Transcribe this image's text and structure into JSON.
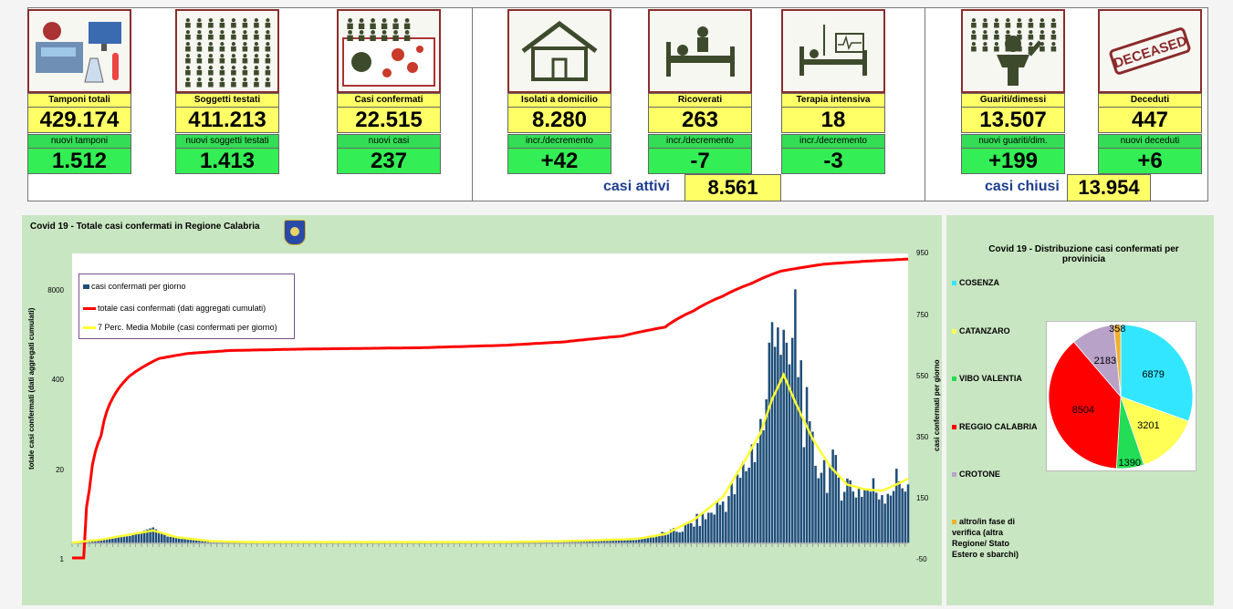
{
  "cards": [
    {
      "id": "tamponi",
      "label": "Tamponi totali",
      "value": "429.174",
      "delta_label": "nuovi tamponi",
      "delta": "1.512",
      "icon": "lab-equipment-icon"
    },
    {
      "id": "soggetti",
      "label": "Soggetti testati",
      "value": "411.213",
      "delta_label": "nuovi soggetti testati",
      "delta": "1.413",
      "icon": "people-grid-icon"
    },
    {
      "id": "confermati",
      "label": "Casi confermati",
      "value": "22.515",
      "delta_label": "nuovi casi",
      "delta": "237",
      "icon": "virus-contagion-icon"
    },
    {
      "id": "isolati",
      "label": "Isolati a domicilio",
      "value": "8.280",
      "delta_label": "incr./decremento",
      "delta": "+42",
      "icon": "house-icon"
    },
    {
      "id": "ricoverati",
      "label": "Ricoverati",
      "value": "263",
      "delta_label": "incr./decremento",
      "delta": "-7",
      "icon": "hospital-bed-icon"
    },
    {
      "id": "terapia",
      "label": "Terapia intensiva",
      "value": "18",
      "delta_label": "incr./decremento",
      "delta": "-3",
      "icon": "icu-monitor-icon"
    },
    {
      "id": "guariti",
      "label": "Guariti/dimessi",
      "value": "13.507",
      "delta_label": "nuovi guariti/dim.",
      "delta": "+199",
      "icon": "recovered-person-icon"
    },
    {
      "id": "deceduti",
      "label": "Deceduti",
      "value": "447",
      "delta_label": "nuovi deceduti",
      "delta": "+6",
      "icon": "deceased-stamp-icon"
    }
  ],
  "summary": {
    "attivi_label": "casi attivi",
    "attivi_value": "8.561",
    "chiusi_label": "casi chiusi",
    "chiusi_value": "13.954"
  },
  "stamp_text": "DECEASED",
  "colors": {
    "bar": "#1f4e79",
    "cumulative_line": "#ff0000",
    "moving_avg": "#ffff33",
    "panel_bg": "#c9e6c2",
    "card_yellow": "#ffff66",
    "card_green": "#33ee55"
  },
  "chart_data": [
    {
      "type": "bar",
      "title": "Covid 19 - Totale casi confermati in Regione Calabria",
      "y_axis_left": {
        "title": "totale casi confermati (dati aggregati cumulati)",
        "scale": "log",
        "ticks": [
          "1",
          "20",
          "400",
          "8000"
        ]
      },
      "y_axis_right": {
        "title": "casi confermati per giorno",
        "range": [
          -50,
          950
        ],
        "ticks": [
          "-50",
          "150",
          "350",
          "550",
          "750",
          "950"
        ]
      },
      "legend": [
        "casi confermati per giorno",
        "totale casi confermati (dati aggregati cumulati)",
        "7 Perc. Media Mobile (casi confermati per giorno)"
      ],
      "legend_position": "top-left",
      "x_days": 290,
      "series": [
        {
          "name": "casi confermati per giorno",
          "kind": "bar",
          "values_keypoints": [
            [
              0,
              0
            ],
            [
              8,
              8
            ],
            [
              20,
              22
            ],
            [
              25,
              40
            ],
            [
              28,
              50
            ],
            [
              33,
              20
            ],
            [
              40,
              14
            ],
            [
              50,
              5
            ],
            [
              60,
              2
            ],
            [
              120,
              1
            ],
            [
              160,
              2
            ],
            [
              170,
              5
            ],
            [
              180,
              8
            ],
            [
              190,
              12
            ],
            [
              200,
              20
            ],
            [
              210,
              40
            ],
            [
              220,
              90
            ],
            [
              230,
              180
            ],
            [
              235,
              300
            ],
            [
              240,
              420
            ],
            [
              243,
              880
            ],
            [
              247,
              500
            ],
            [
              250,
              700
            ],
            [
              255,
              300
            ],
            [
              260,
              250
            ],
            [
              270,
              180
            ],
            [
              280,
              170
            ],
            [
              289,
              210
            ]
          ]
        },
        {
          "name": "totale casi confermati (dati aggregati cumulati)",
          "kind": "line",
          "values_keypoints": [
            [
              0,
              1
            ],
            [
              4,
              1
            ],
            [
              6,
              10
            ],
            [
              10,
              60
            ],
            [
              15,
              250
            ],
            [
              20,
              450
            ],
            [
              25,
              620
            ],
            [
              30,
              800
            ],
            [
              40,
              950
            ],
            [
              55,
              1050
            ],
            [
              80,
              1100
            ],
            [
              120,
              1150
            ],
            [
              150,
              1250
            ],
            [
              170,
              1400
            ],
            [
              190,
              1700
            ],
            [
              205,
              2300
            ],
            [
              215,
              4000
            ],
            [
              225,
              6500
            ],
            [
              235,
              10000
            ],
            [
              245,
              15000
            ],
            [
              260,
              19000
            ],
            [
              275,
              21000
            ],
            [
              289,
              22500
            ]
          ]
        },
        {
          "name": "7 Perc. Media Mobile (casi confermati per giorno)",
          "kind": "line",
          "values_keypoints": [
            [
              0,
              0
            ],
            [
              10,
              10
            ],
            [
              22,
              30
            ],
            [
              28,
              40
            ],
            [
              36,
              18
            ],
            [
              48,
              5
            ],
            [
              60,
              2
            ],
            [
              150,
              2
            ],
            [
              175,
              6
            ],
            [
              195,
              12
            ],
            [
              205,
              28
            ],
            [
              215,
              75
            ],
            [
              225,
              150
            ],
            [
              232,
              260
            ],
            [
              238,
              360
            ],
            [
              242,
              470
            ],
            [
              246,
              550
            ],
            [
              250,
              460
            ],
            [
              256,
              340
            ],
            [
              262,
              250
            ],
            [
              268,
              190
            ],
            [
              274,
              175
            ],
            [
              280,
              170
            ],
            [
              286,
              195
            ],
            [
              289,
              210
            ]
          ]
        }
      ]
    },
    {
      "type": "pie",
      "title": "Covid 19 - Distribuzione casi confermati per provinicia",
      "slices": [
        {
          "name": "COSENZA",
          "value": 6879,
          "color": "#33e6ff"
        },
        {
          "name": "CATANZARO",
          "value": 3201,
          "color": "#ffff55"
        },
        {
          "name": "VIBO VALENTIA",
          "value": 1390,
          "color": "#22dd55"
        },
        {
          "name": "REGGIO CALABRIA",
          "value": 8504,
          "color": "#ff0000"
        },
        {
          "name": "CROTONE",
          "value": 2183,
          "color": "#b8a2c8"
        },
        {
          "name": "altro/in fase di verifica (altra Regione/ Stato Estero e sbarchi)",
          "value": 358,
          "color": "#f0b030"
        }
      ]
    }
  ]
}
